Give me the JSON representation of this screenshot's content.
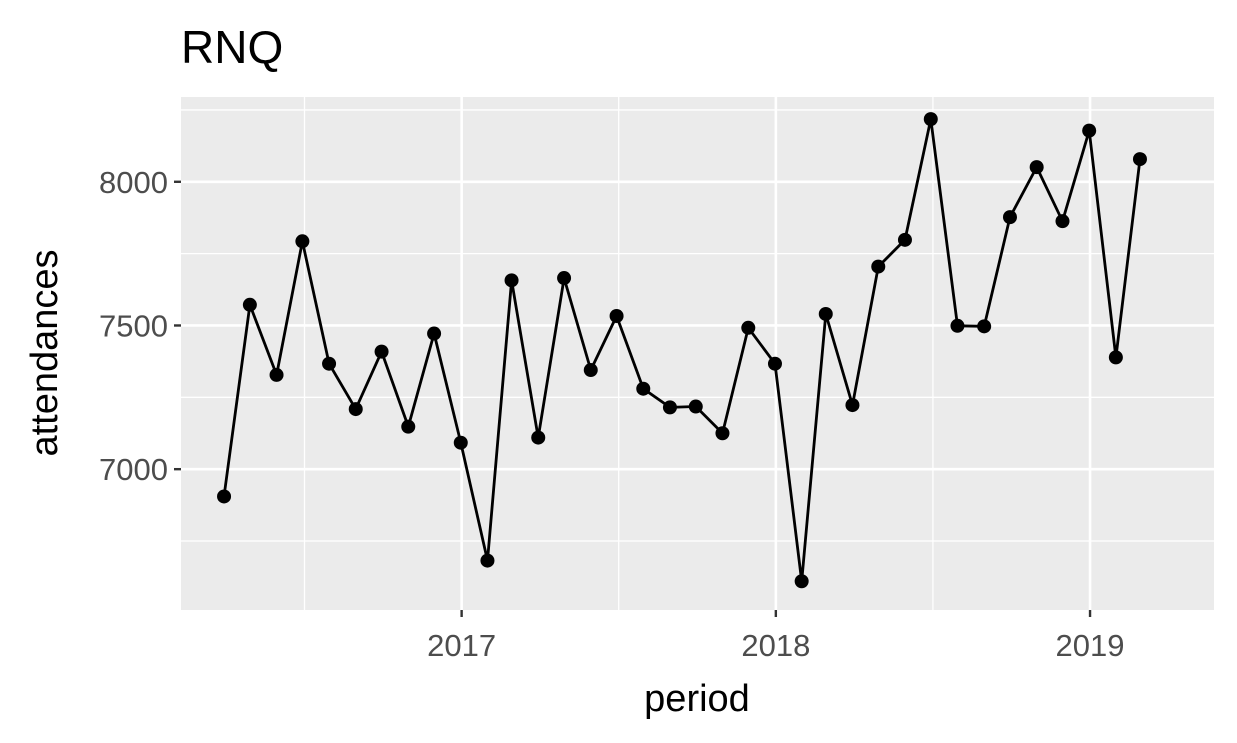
{
  "chart_data": {
    "type": "line",
    "title": "RNQ",
    "xlabel": "period",
    "ylabel": "attendances",
    "xlim": [
      "2016-02-10",
      "2019-05-25"
    ],
    "ylim": [
      6510,
      8295
    ],
    "x_ticks": [
      {
        "value": "2017-01-01",
        "label": "2017"
      },
      {
        "value": "2018-01-01",
        "label": "2018"
      },
      {
        "value": "2019-01-01",
        "label": "2019"
      }
    ],
    "y_ticks": [
      {
        "value": 7000,
        "label": "7000"
      },
      {
        "value": 7500,
        "label": "7500"
      },
      {
        "value": 8000,
        "label": "8000"
      }
    ],
    "grid": true,
    "legend": "none",
    "colors": {
      "panel": "#ebebeb",
      "grid": "#ffffff",
      "line": "#000000",
      "point": "#000000",
      "tick_label": "#4d4d4d"
    },
    "series": [
      {
        "x": [
          "2016-03-31",
          "2016-04-30",
          "2016-05-31",
          "2016-06-30",
          "2016-07-31",
          "2016-08-31",
          "2016-09-30",
          "2016-10-31",
          "2016-11-30",
          "2016-12-31",
          "2017-01-31",
          "2017-02-28",
          "2017-03-31",
          "2017-04-30",
          "2017-05-31",
          "2017-06-30",
          "2017-07-31",
          "2017-08-31",
          "2017-09-30",
          "2017-10-31",
          "2017-11-30",
          "2017-12-31",
          "2018-01-31",
          "2018-02-28",
          "2018-03-31",
          "2018-04-30",
          "2018-05-31",
          "2018-06-30",
          "2018-07-31",
          "2018-08-31",
          "2018-09-30",
          "2018-10-31",
          "2018-11-30",
          "2018-12-31",
          "2019-01-31",
          "2019-02-28"
        ],
        "values": [
          6905,
          7572,
          7328,
          7793,
          7367,
          7209,
          7409,
          7148,
          7472,
          7092,
          6682,
          7657,
          7110,
          7665,
          7345,
          7533,
          7280,
          7215,
          7218,
          7125,
          7492,
          7367,
          6610,
          7540,
          7223,
          7705,
          7798,
          8218,
          7499,
          7497,
          7877,
          8051,
          7863,
          8178,
          7389,
          8079
        ]
      }
    ]
  }
}
